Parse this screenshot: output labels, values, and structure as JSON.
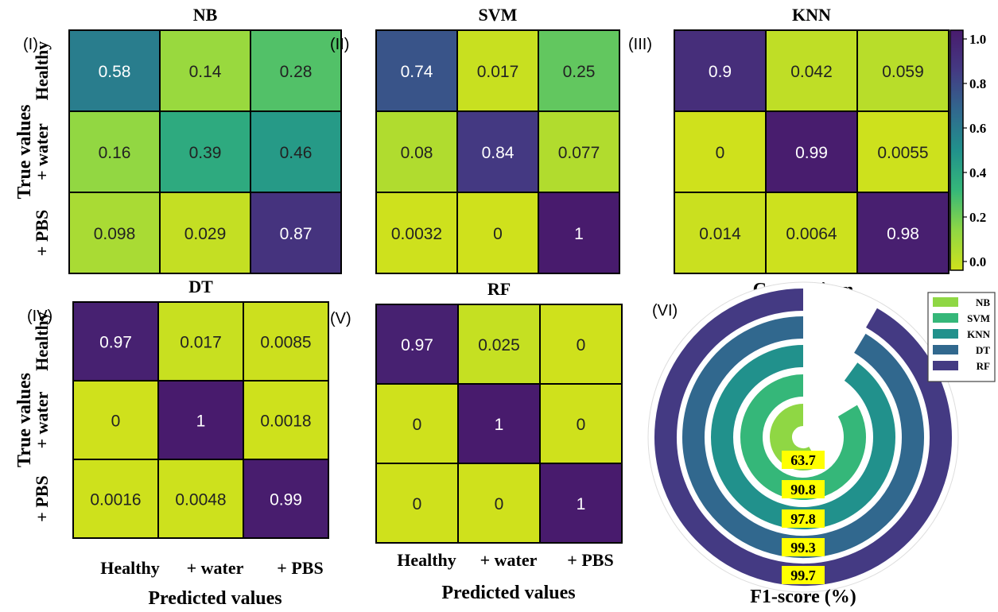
{
  "chart_data": [
    {
      "type": "heatmap",
      "panel_label": "(I)",
      "title": "NB",
      "x_categories": [
        "Healthy",
        "+ water",
        "+ PBS"
      ],
      "y_categories": [
        "Healthy",
        "+ water",
        "+ PBS"
      ],
      "values": [
        [
          0.58,
          0.14,
          0.28
        ],
        [
          0.16,
          0.39,
          0.46
        ],
        [
          0.098,
          0.029,
          0.87
        ]
      ],
      "labels": [
        [
          "0.58",
          "0.14",
          "0.28"
        ],
        [
          "0.16",
          "0.39",
          "0.46"
        ],
        [
          "0.098",
          "0.029",
          "0.87"
        ]
      ]
    },
    {
      "type": "heatmap",
      "panel_label": "(II)",
      "title": "SVM",
      "x_categories": [
        "Healthy",
        "+ water",
        "+ PBS"
      ],
      "y_categories": [
        "Healthy",
        "+ water",
        "+ PBS"
      ],
      "values": [
        [
          0.74,
          0.017,
          0.25
        ],
        [
          0.08,
          0.84,
          0.077
        ],
        [
          0.0032,
          0,
          1
        ]
      ],
      "labels": [
        [
          "0.74",
          "0.017",
          "0.25"
        ],
        [
          "0.08",
          "0.84",
          "0.077"
        ],
        [
          "0.0032",
          "0",
          "1"
        ]
      ]
    },
    {
      "type": "heatmap",
      "panel_label": "(III)",
      "title": "KNN",
      "x_categories": [
        "Healthy",
        "+ water",
        "+ PBS"
      ],
      "y_categories": [
        "Healthy",
        "+ water",
        "+ PBS"
      ],
      "values": [
        [
          0.9,
          0.042,
          0.059
        ],
        [
          0,
          0.99,
          0.0055
        ],
        [
          0.014,
          0.0064,
          0.98
        ]
      ],
      "labels": [
        [
          "0.9",
          "0.042",
          "0.059"
        ],
        [
          "0",
          "0.99",
          "0.0055"
        ],
        [
          "0.014",
          "0.0064",
          "0.98"
        ]
      ]
    },
    {
      "type": "heatmap",
      "panel_label": "(IV)",
      "title": "DT",
      "x_categories": [
        "Healthy",
        "+ water",
        "+ PBS"
      ],
      "y_categories": [
        "Healthy",
        "+ water",
        "+ PBS"
      ],
      "values": [
        [
          0.97,
          0.017,
          0.0085
        ],
        [
          0,
          1,
          0.0018
        ],
        [
          0.0016,
          0.0048,
          0.99
        ]
      ],
      "labels": [
        [
          "0.97",
          "0.017",
          "0.0085"
        ],
        [
          "0",
          "1",
          "0.0018"
        ],
        [
          "0.0016",
          "0.0048",
          "0.99"
        ]
      ]
    },
    {
      "type": "heatmap",
      "panel_label": "(V)",
      "title": "RF",
      "x_categories": [
        "Healthy",
        "+ water",
        "+ PBS"
      ],
      "y_categories": [
        "Healthy",
        "+ water",
        "+ PBS"
      ],
      "values": [
        [
          0.97,
          0.025,
          0
        ],
        [
          0,
          1,
          0
        ],
        [
          0,
          0,
          1
        ]
      ],
      "labels": [
        [
          "0.97",
          "0.025",
          "0"
        ],
        [
          "0",
          "1",
          "0"
        ],
        [
          "0",
          "0",
          "1"
        ]
      ]
    },
    {
      "type": "bar",
      "subtype": "radial",
      "panel_label": "(VI)",
      "title": "Comparison",
      "xlabel": "F1-score (%)",
      "categories": [
        "NB",
        "SVM",
        "KNN",
        "DT",
        "RF"
      ],
      "values": [
        63.7,
        90.8,
        97.8,
        99.3,
        99.7
      ],
      "value_labels": [
        "63.7",
        "90.8",
        "97.8",
        "99.3",
        "99.7"
      ],
      "colors": [
        "#8fd744",
        "#35b779",
        "#21918c",
        "#31688e",
        "#443a83"
      ],
      "legend_position": "top-right",
      "label_highlight": "#ffff00"
    }
  ],
  "shared": {
    "ylabel": "True values",
    "xlabel": "Predicted values",
    "colorbar": {
      "ticks": [
        "1.0",
        "0.8",
        "0.6",
        "0.4",
        "0.2",
        "0.0"
      ],
      "tick_values": [
        1.0,
        0.8,
        0.6,
        0.4,
        0.2,
        0.0
      ],
      "range": [
        0,
        1
      ],
      "colormap": [
        "#cfe11c",
        "#8fd744",
        "#35b779",
        "#21918c",
        "#31688e",
        "#443a83",
        "#481b6d"
      ]
    }
  }
}
